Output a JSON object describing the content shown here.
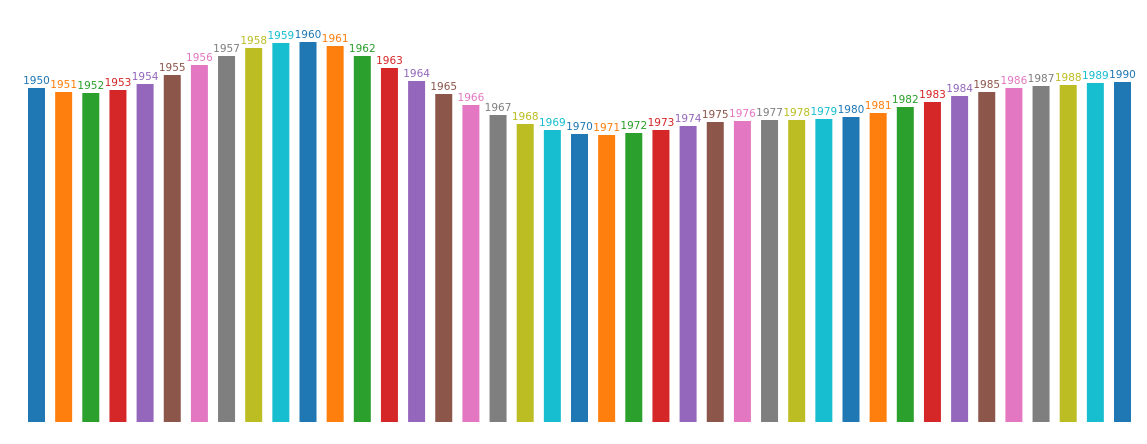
{
  "chart_data": {
    "type": "bar",
    "title": "",
    "xlabel": "",
    "ylabel": "",
    "ylim": [
      0,
      380
    ],
    "grid": false,
    "legend": "none",
    "categories": [
      "1950",
      "1951",
      "1952",
      "1953",
      "1954",
      "1955",
      "1956",
      "1957",
      "1958",
      "1959",
      "1960",
      "1961",
      "1962",
      "1963",
      "1964",
      "1965",
      "1966",
      "1967",
      "1968",
      "1969",
      "1970",
      "1971",
      "1972",
      "1973",
      "1974",
      "1975",
      "1976",
      "1977",
      "1978",
      "1979",
      "1980",
      "1981",
      "1982",
      "1983",
      "1984",
      "1985",
      "1986",
      "1987",
      "1988",
      "1989",
      "1990"
    ],
    "values": [
      334,
      330,
      329,
      332,
      338,
      347,
      357,
      366,
      374,
      379,
      380,
      376,
      366,
      354,
      341,
      328,
      317,
      307,
      298,
      292,
      288,
      287,
      289,
      292,
      296,
      300,
      301,
      302,
      302,
      303,
      305,
      309,
      315,
      320,
      326,
      330,
      334,
      336,
      337,
      339,
      340
    ],
    "colors": [
      "#1f77b4",
      "#ff7f0e",
      "#2ca02c",
      "#d62728",
      "#9467bd",
      "#8c564b",
      "#e377c2",
      "#7f7f7f",
      "#bcbd22",
      "#17becf"
    ]
  }
}
